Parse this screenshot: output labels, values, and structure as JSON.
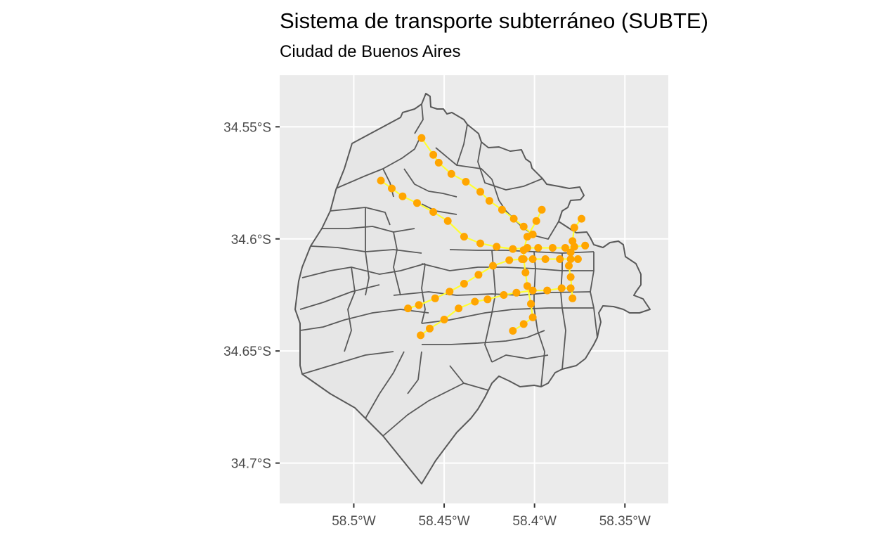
{
  "title": "Sistema de transporte subterráneo (SUBTE)",
  "subtitle": "Ciudad de Buenos Aires",
  "y_axis": {
    "ticks": [
      {
        "label": "34.55°S",
        "value": -34.55
      },
      {
        "label": "34.6°S",
        "value": -34.6
      },
      {
        "label": "34.65°S",
        "value": -34.65
      },
      {
        "label": "34.7°S",
        "value": -34.7
      }
    ]
  },
  "x_axis": {
    "ticks": [
      {
        "label": "58.5°W",
        "value": -58.5
      },
      {
        "label": "58.45°W",
        "value": -58.45
      },
      {
        "label": "58.4°W",
        "value": -58.4
      },
      {
        "label": "58.35°W",
        "value": -58.35
      }
    ]
  },
  "colors": {
    "panel": "#ebebeb",
    "grid": "#ffffff",
    "land": "#e6e6e6",
    "border": "#595959",
    "line": "#ffff33",
    "station": "#ffa500"
  },
  "map": {
    "region": "Ciudad de Buenos Aires",
    "lon_range": [
      -58.541,
      -58.326
    ],
    "lat_range": [
      -34.718,
      -34.527
    ],
    "subte_lines": [
      {
        "stations": [
          [
            -58.4625,
            -34.555
          ],
          [
            -58.456,
            -34.5625
          ],
          [
            -58.453,
            -34.566
          ],
          [
            -58.446,
            -34.571
          ],
          [
            -58.438,
            -34.5745
          ],
          [
            -58.43,
            -34.579
          ],
          [
            -58.425,
            -34.583
          ],
          [
            -58.418,
            -34.587
          ],
          [
            -58.4115,
            -34.591
          ],
          [
            -58.406,
            -34.5945
          ],
          [
            -58.401,
            -34.598
          ]
        ]
      },
      {
        "stations": [
          [
            -58.485,
            -34.574
          ],
          [
            -58.479,
            -34.5775
          ],
          [
            -58.473,
            -34.581
          ],
          [
            -58.465,
            -34.584
          ],
          [
            -58.456,
            -34.588
          ],
          [
            -58.448,
            -34.592
          ],
          [
            -58.439,
            -34.599
          ],
          [
            -58.43,
            -34.602
          ],
          [
            -58.421,
            -34.6035
          ],
          [
            -58.412,
            -34.6045
          ],
          [
            -58.404,
            -34.604
          ],
          [
            -58.398,
            -34.604
          ],
          [
            -58.39,
            -34.604
          ],
          [
            -58.383,
            -34.604
          ],
          [
            -58.378,
            -34.6035
          ],
          [
            -58.372,
            -34.603
          ]
        ]
      },
      {
        "stations": [
          [
            -58.47,
            -34.631
          ],
          [
            -58.464,
            -34.6295
          ],
          [
            -58.455,
            -34.6265
          ],
          [
            -58.447,
            -34.6235
          ],
          [
            -58.439,
            -34.62
          ],
          [
            -58.431,
            -34.616
          ],
          [
            -58.423,
            -34.612
          ],
          [
            -58.414,
            -34.6095
          ],
          [
            -58.407,
            -34.609
          ],
          [
            -58.401,
            -34.609
          ],
          [
            -58.394,
            -34.609
          ],
          [
            -58.386,
            -34.609
          ],
          [
            -58.38,
            -34.609
          ],
          [
            -58.376,
            -34.609
          ]
        ]
      },
      {
        "stations": [
          [
            -58.463,
            -34.643
          ],
          [
            -58.458,
            -34.64
          ],
          [
            -58.45,
            -34.636
          ],
          [
            -58.442,
            -34.631
          ],
          [
            -58.433,
            -34.628
          ],
          [
            -58.426,
            -34.627
          ],
          [
            -58.417,
            -34.625
          ],
          [
            -58.41,
            -34.624
          ],
          [
            -58.401,
            -34.623
          ],
          [
            -58.393,
            -34.623
          ],
          [
            -58.385,
            -34.622
          ],
          [
            -58.38,
            -34.622
          ]
        ]
      },
      {
        "stations": [
          [
            -58.379,
            -34.6265
          ],
          [
            -58.38,
            -34.617
          ],
          [
            -58.381,
            -34.612
          ],
          [
            -58.38,
            -34.606
          ],
          [
            -58.379,
            -34.601
          ],
          [
            -58.378,
            -34.595
          ],
          [
            -58.374,
            -34.591
          ]
        ]
      },
      {
        "stations": [
          [
            -58.412,
            -34.641
          ],
          [
            -58.406,
            -34.638
          ],
          [
            -58.401,
            -34.635
          ],
          [
            -58.402,
            -34.629
          ],
          [
            -58.404,
            -34.621
          ],
          [
            -58.405,
            -34.615
          ],
          [
            -58.406,
            -34.609
          ],
          [
            -58.406,
            -34.605
          ],
          [
            -58.404,
            -34.599
          ],
          [
            -58.399,
            -34.592
          ],
          [
            -58.396,
            -34.587
          ]
        ]
      }
    ]
  }
}
